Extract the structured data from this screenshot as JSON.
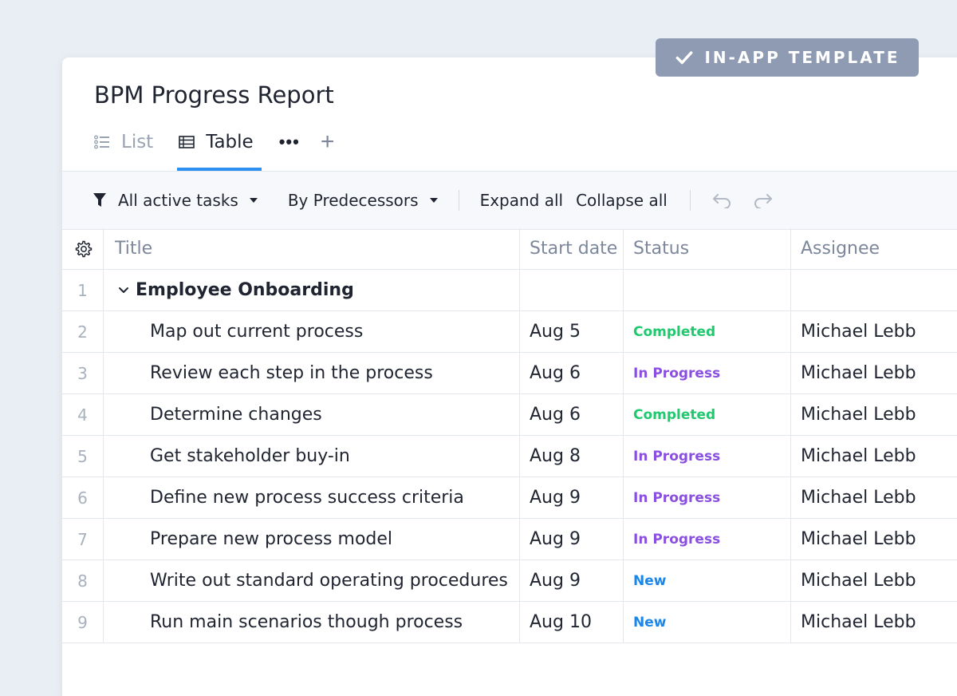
{
  "badge": {
    "label": "IN-APP TEMPLATE",
    "icon": "check-icon"
  },
  "report": {
    "title": "BPM Progress Report"
  },
  "tabs": [
    {
      "label": "List",
      "icon": "list-icon",
      "active": false
    },
    {
      "label": "Table",
      "icon": "table-icon",
      "active": true
    }
  ],
  "tabs_more": "•••",
  "tabs_add": "+",
  "toolbar": {
    "filter_label": "All active tasks",
    "group_label": "By Predecessors",
    "expand_label": "Expand all",
    "collapse_label": "Collapse all"
  },
  "table": {
    "columns": {
      "title": "Title",
      "start": "Start date",
      "status": "Status",
      "assignee": "Assignee"
    },
    "group": {
      "num": "1",
      "title": "Employee Onboarding"
    },
    "rows": [
      {
        "num": "2",
        "title": "Map out current process",
        "start": "Aug 5",
        "status": "Completed",
        "assignee": "Michael Lebb"
      },
      {
        "num": "3",
        "title": "Review each step in the process",
        "start": "Aug 6",
        "status": "In Progress",
        "assignee": "Michael Lebb"
      },
      {
        "num": "4",
        "title": "Determine changes",
        "start": "Aug 6",
        "status": "Completed",
        "assignee": "Michael Lebb"
      },
      {
        "num": "5",
        "title": "Get stakeholder buy-in",
        "start": "Aug 8",
        "status": "In Progress",
        "assignee": "Michael Lebb"
      },
      {
        "num": "6",
        "title": "Define new process success criteria",
        "start": "Aug 9",
        "status": "In Progress",
        "assignee": "Michael Lebb"
      },
      {
        "num": "7",
        "title": "Prepare new process model",
        "start": "Aug 9",
        "status": "In Progress",
        "assignee": "Michael Lebb"
      },
      {
        "num": "8",
        "title": "Write out standard operating procedures",
        "start": "Aug 9",
        "status": "New",
        "assignee": "Michael Lebb"
      },
      {
        "num": "9",
        "title": "Run main scenarios though process",
        "start": "Aug 10",
        "status": "New",
        "assignee": "Michael Lebb"
      }
    ]
  },
  "status_colors": {
    "Completed": "#1fc96e",
    "In Progress": "#8a4fe0",
    "New": "#1a86e8"
  },
  "accent": "#2d8ff0"
}
